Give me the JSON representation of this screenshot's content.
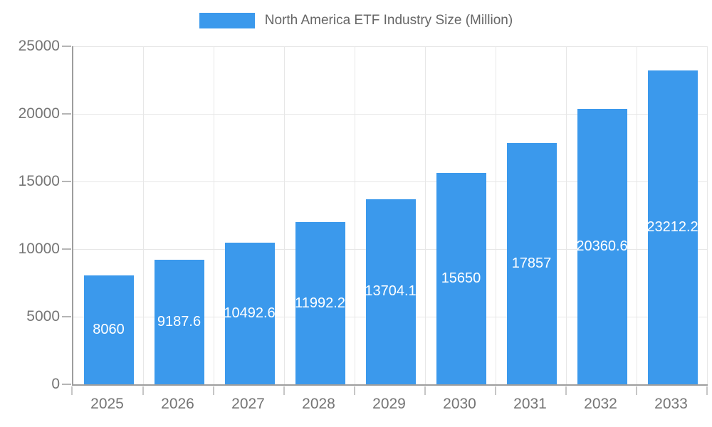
{
  "legend": {
    "label": "North America ETF Industry Size (Million)"
  },
  "colors": {
    "bar": "#3B99EC",
    "axis_line": "#9e9e9e",
    "gridline": "#e7e7e7",
    "axis_text": "#757575",
    "legend_text": "#666666",
    "bar_label_text": "#ffffff",
    "background": "#ffffff"
  },
  "chart_data": {
    "type": "bar",
    "title": "North America ETF Industry Size (Million)",
    "series_name": "North America ETF Industry Size (Million)",
    "categories": [
      "2025",
      "2026",
      "2027",
      "2028",
      "2029",
      "2030",
      "2031",
      "2032",
      "2033"
    ],
    "values": [
      8060,
      9187.6,
      10492.6,
      11992.2,
      13704.1,
      15650,
      17857,
      20360.6,
      23212.2
    ],
    "value_labels": [
      "8060",
      "9187.6",
      "10492.6",
      "11992.2",
      "13704.1",
      "15650",
      "17857",
      "20360.6",
      "23212.2"
    ],
    "xlabel": "",
    "ylabel": "",
    "ylim": [
      0,
      25000
    ],
    "y_ticks": [
      0,
      5000,
      10000,
      15000,
      20000,
      25000
    ],
    "grid": "both",
    "legend_position": "top"
  }
}
